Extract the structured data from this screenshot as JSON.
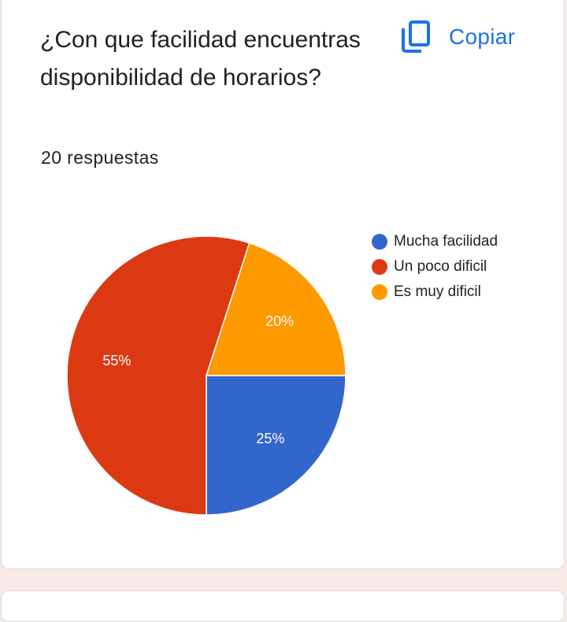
{
  "question": {
    "title": "¿Con que facilidad encuentras disponibilidad de horarios?",
    "response_count": "20 respuestas"
  },
  "actions": {
    "copy_label": "Copiar",
    "copy_icon": "copy-icon",
    "accent_color": "#1a73e8"
  },
  "chart_data": {
    "type": "pie",
    "title": "",
    "start_angle_deg": 0,
    "direction": "clockwise",
    "legend_position": "right",
    "slices": [
      {
        "label": "Mucha facilidad",
        "value": 25,
        "display": "25%",
        "color": "#3366cc"
      },
      {
        "label": "Un poco dificil",
        "value": 55,
        "display": "55%",
        "color": "#dc3912"
      },
      {
        "label": "Es muy dificil",
        "value": 20,
        "display": "20%",
        "color": "#ff9900"
      }
    ]
  }
}
